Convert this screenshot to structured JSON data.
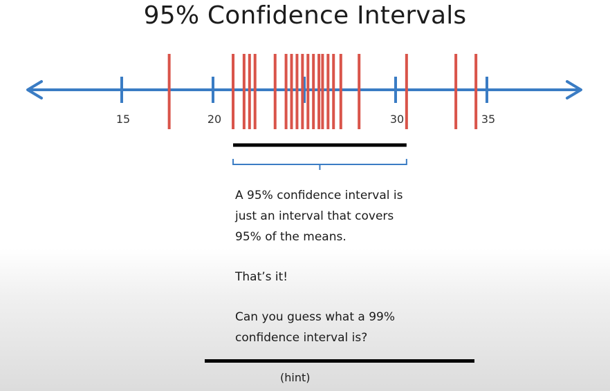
{
  "slide": {
    "title": "95% Confidence Intervals",
    "caption": {
      "line1": "A 95% confidence interval is",
      "line2": "just an interval that covers",
      "line3": "95% of the means.",
      "line4": "That’s it!",
      "line5": "Can you guess what a 99%",
      "line6": "confidence interval is?"
    },
    "hint": "(hint)"
  },
  "number_line": {
    "axis_color": "#3a7cc4",
    "mean_color": "#d9544a",
    "ticks": [
      {
        "value": 15,
        "label": "15"
      },
      {
        "value": 20,
        "label": "20"
      },
      {
        "value": 25,
        "label": ""
      },
      {
        "value": 30,
        "label": "30"
      },
      {
        "value": 35,
        "label": "35"
      }
    ],
    "means": [
      17.6,
      21.1,
      21.7,
      22.0,
      22.3,
      23.4,
      24.0,
      24.3,
      24.6,
      24.9,
      25.2,
      25.5,
      25.8,
      26.0,
      26.3,
      26.6,
      27.0,
      28.0,
      30.6,
      33.3,
      34.4
    ],
    "interval_95": [
      21.1,
      30.6
    ]
  }
}
